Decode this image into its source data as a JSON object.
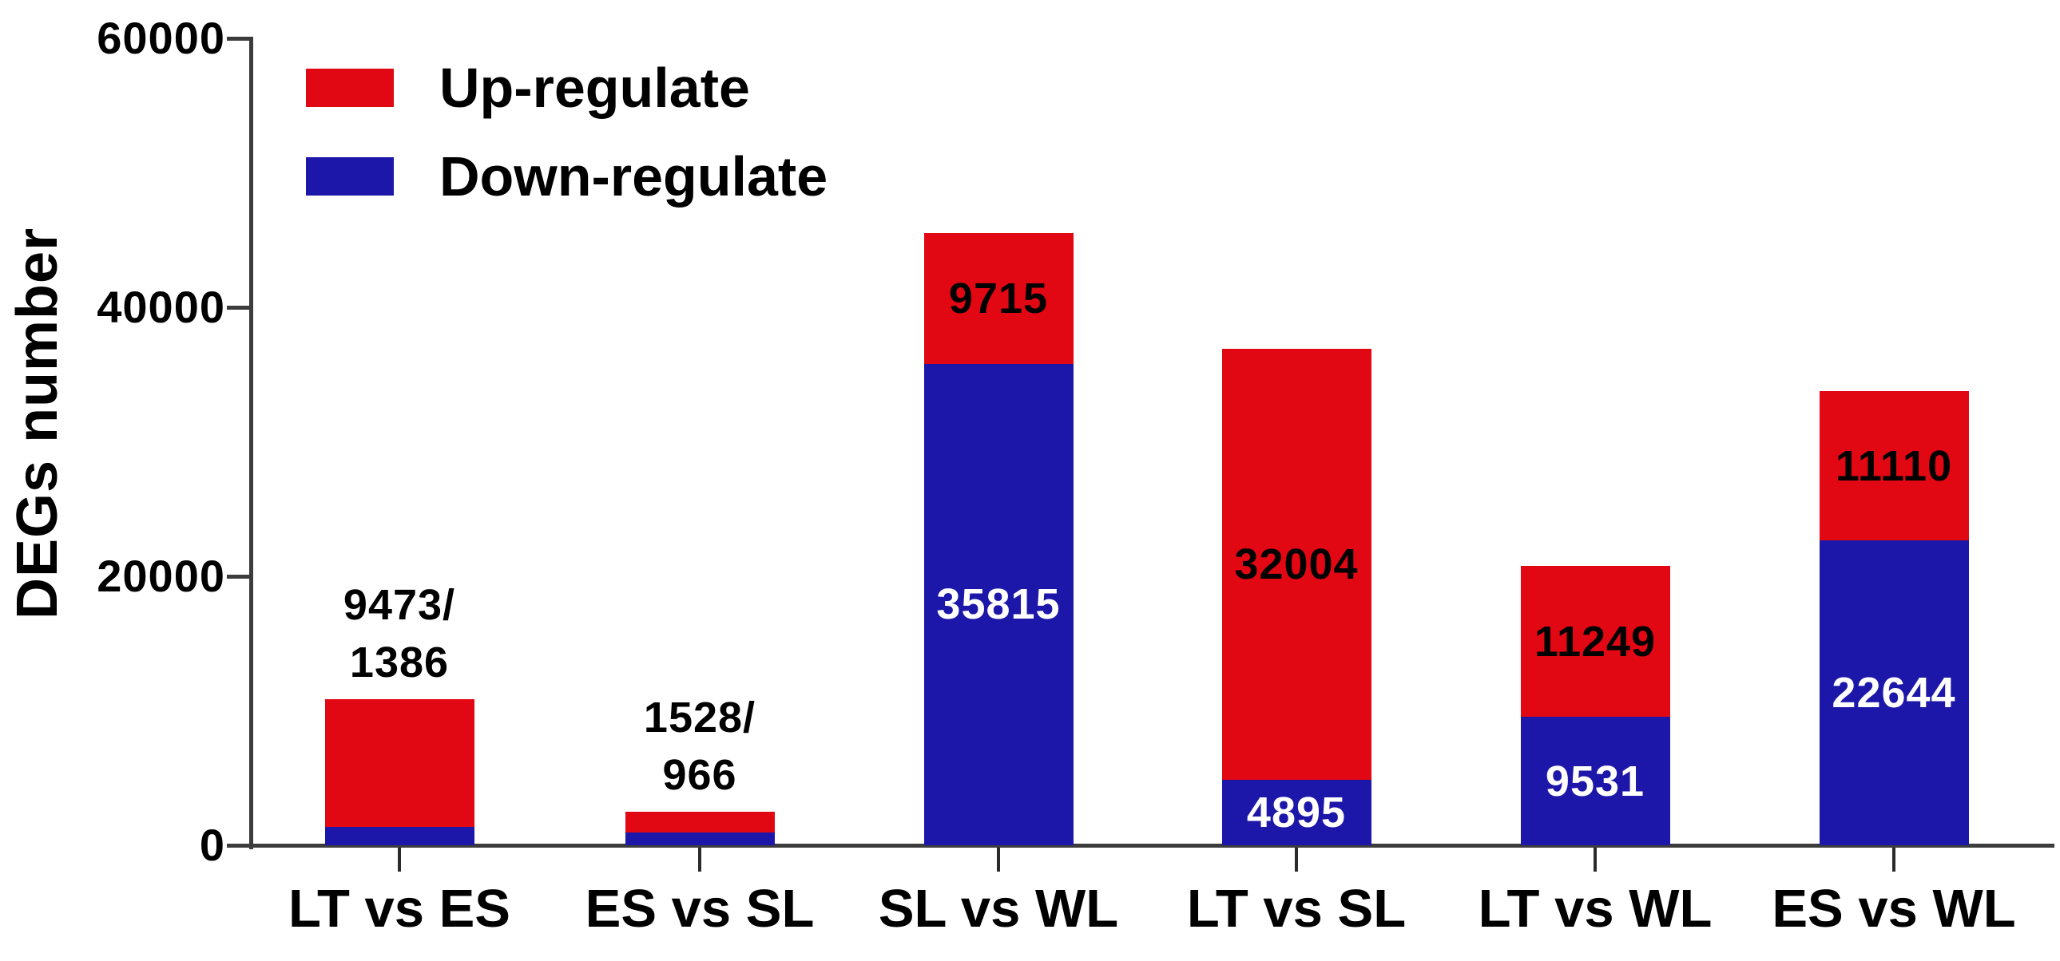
{
  "chart_data": {
    "type": "bar",
    "subtype": "stacked-vertical",
    "title": "",
    "xlabel": "",
    "ylabel": "DEGs number",
    "ylim": [
      0,
      60000
    ],
    "yticks": [
      0,
      20000,
      40000,
      60000
    ],
    "ytick_labels": [
      "0",
      "20000",
      "40000",
      "60000"
    ],
    "grid": "off",
    "legend_position": "top-left-inside",
    "categories": [
      "LT vs ES",
      "ES vs SL",
      "SL vs WL",
      "LT vs SL",
      "LT vs WL",
      "ES vs WL"
    ],
    "series": [
      {
        "name": "Up-regulate",
        "color": "#e10713",
        "values": [
          9473,
          1528,
          9715,
          32004,
          11249,
          11110
        ]
      },
      {
        "name": "Down-regulate",
        "color": "#1c17a9",
        "values": [
          1386,
          966,
          35815,
          4895,
          9531,
          22644
        ]
      }
    ],
    "bar_value_labels": [
      {
        "mode": "above",
        "lines": [
          "9473/",
          "1386"
        ]
      },
      {
        "mode": "above",
        "lines": [
          "1528/",
          "966"
        ]
      },
      {
        "mode": "inside",
        "up": "9715",
        "down": "35815"
      },
      {
        "mode": "inside",
        "up": "32004",
        "down": "4895"
      },
      {
        "mode": "inside",
        "up": "11249",
        "down": "9531"
      },
      {
        "mode": "inside",
        "up": "11110",
        "down": "22644"
      }
    ],
    "inside_label_colors": {
      "up": "#000000",
      "down": "#ffffff"
    },
    "legend": [
      {
        "label": "Up-regulate",
        "color": "#e10713"
      },
      {
        "label": "Down-regulate",
        "color": "#1c17a9"
      }
    ]
  }
}
